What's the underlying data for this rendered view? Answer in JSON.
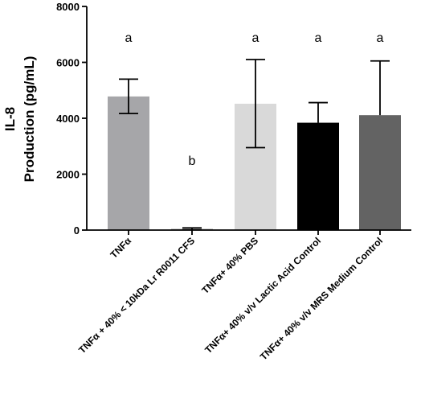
{
  "chart_data": {
    "type": "bar",
    "title": "",
    "xlabel": "",
    "ylabel_line1": "IL-8",
    "ylabel_line2": "Production (pg/mL)",
    "ylim": [
      0,
      8000
    ],
    "yticks": [
      "0",
      "2000",
      "4000",
      "6000",
      "8000"
    ],
    "ytick_values": [
      0,
      2000,
      4000,
      6000,
      8000
    ],
    "categories": [
      "TNFα",
      "TNFα + 40% < 10kDa Lr R0011 CFS",
      "TNFα+ 40% PBS",
      "TNFα+ 40% v/v Lactic Acid Control",
      "TNFα+ 40% v/v MRS Medium Control"
    ],
    "values": [
      4780,
      40,
      4520,
      3840,
      4110
    ],
    "error_upper": [
      5400,
      80,
      6100,
      4560,
      6050
    ],
    "error_lower": [
      4170,
      10,
      2950,
      3840,
      4110
    ],
    "significance": [
      "a",
      "b",
      "a",
      "a",
      "a"
    ],
    "bar_colors": [
      "#a6a6a9",
      "#8c8c8c",
      "#d9d9d9",
      "#000000",
      "#636363"
    ],
    "grid": false,
    "legend": "none"
  }
}
